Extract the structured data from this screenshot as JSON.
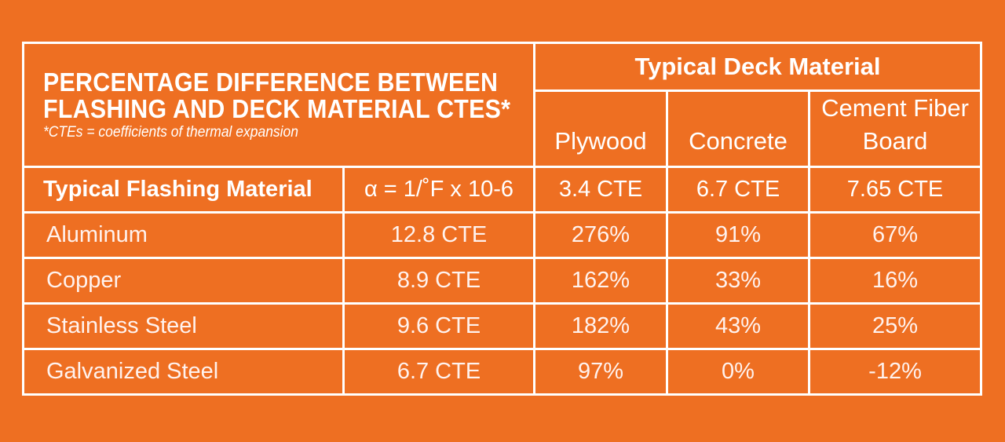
{
  "title": {
    "line1": "PERCENTAGE DIFFERENCE BETWEEN",
    "line2": "FLASHING AND DECK MATERIAL CTES*",
    "note": "*CTEs = coefficients of thermal expansion"
  },
  "deck_header": "Typical Deck Material",
  "deck_columns": [
    "Plywood",
    "Concrete",
    "Cement Fiber",
    "Board"
  ],
  "flashing_header": {
    "label": "Typical Flashing Material",
    "unit": "α = 1/˚F x 10-6",
    "deck_ctes": [
      "3.4 CTE",
      "6.7 CTE",
      "7.65 CTE"
    ]
  },
  "rows": [
    {
      "material": "Aluminum",
      "cte": "12.8 CTE",
      "plywood": "276%",
      "concrete": "91%",
      "cement_fiber": "67%"
    },
    {
      "material": "Copper",
      "cte": "8.9 CTE",
      "plywood": "162%",
      "concrete": "33%",
      "cement_fiber": "16%"
    },
    {
      "material": "Stainless Steel",
      "cte": "9.6 CTE",
      "plywood": "182%",
      "concrete": "43%",
      "cement_fiber": "25%"
    },
    {
      "material": "Galvanized Steel",
      "cte": "6.7 CTE",
      "plywood": "97%",
      "concrete": "0%",
      "cement_fiber": "-12%"
    }
  ],
  "colors": {
    "background": "#ee6f22",
    "border": "#ffffff",
    "text": "#ffffff"
  }
}
